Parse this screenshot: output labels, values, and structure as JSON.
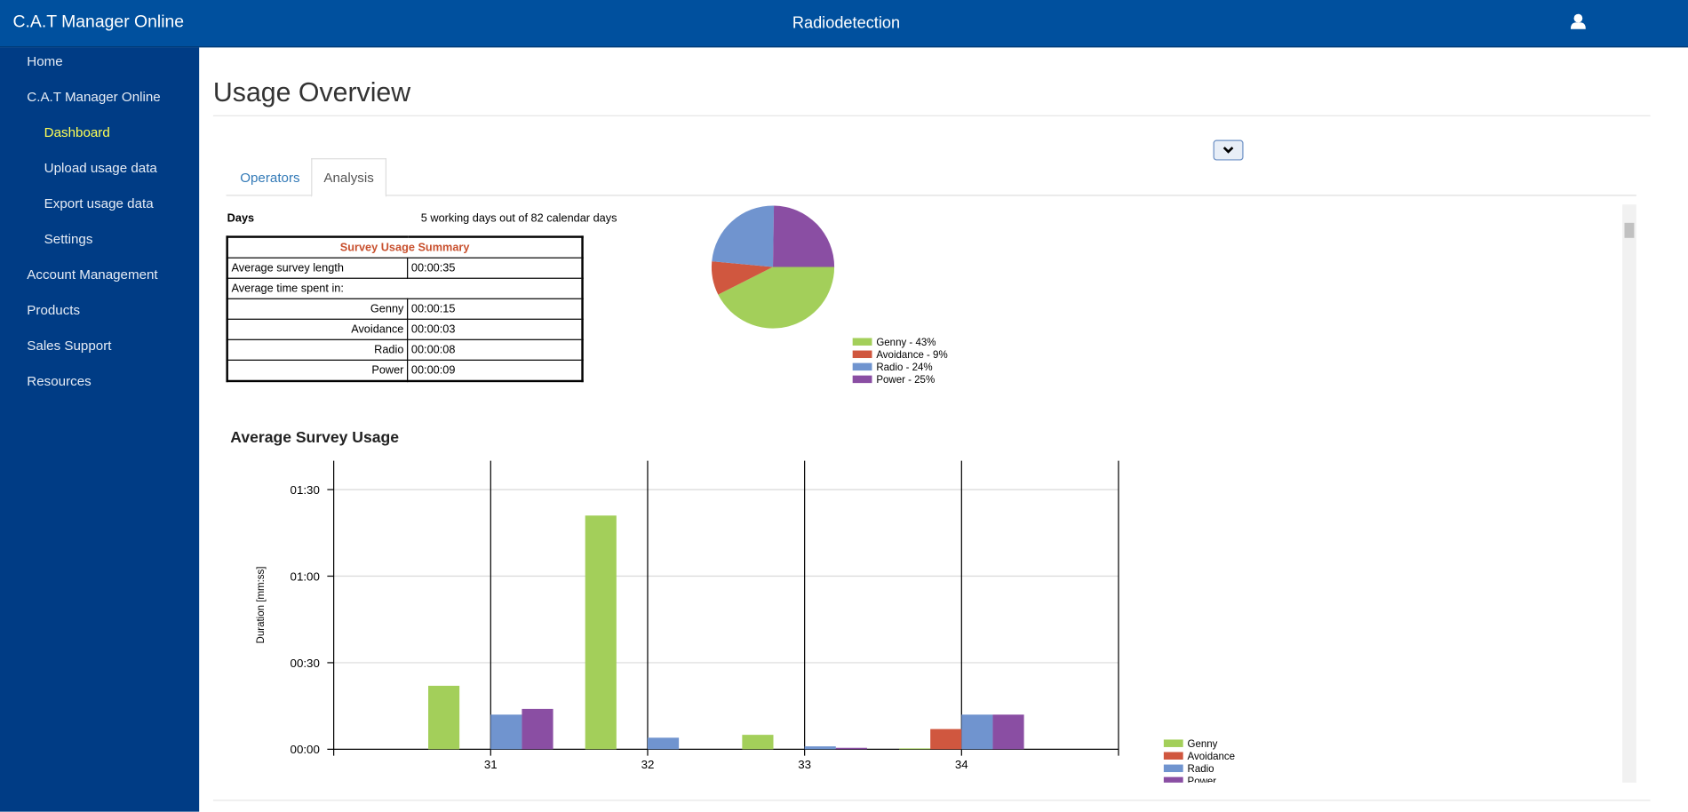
{
  "header": {
    "brand": "C.A.T Manager Online",
    "site": "Radiodetection"
  },
  "nav": [
    "Home",
    "C.A.T Manager Online",
    "Dashboard",
    "Upload usage data",
    "Export usage data",
    "Settings",
    "Account Management",
    "Products",
    "Sales Support",
    "Resources"
  ],
  "page_title": "Usage Overview",
  "tabs": [
    "Operators",
    "Analysis"
  ],
  "days": {
    "label": "Days",
    "value": "5 working days out of 82 calendar days"
  },
  "summary_table": {
    "title": "Survey Usage Summary",
    "rows": [
      [
        "Average survey length",
        "00:00:35"
      ],
      [
        "Average time spent in:"
      ],
      [
        "Genny",
        "00:00:15"
      ],
      [
        "Avoidance",
        "00:00:03"
      ],
      [
        "Radio",
        "00:00:08"
      ],
      [
        "Power",
        "00:00:09"
      ]
    ]
  },
  "chart_data": [
    {
      "type": "pie",
      "categories": [
        "Genny",
        "Avoidance",
        "Radio",
        "Power"
      ],
      "values": [
        43,
        9,
        24,
        25
      ],
      "labels": [
        "Genny - 43%",
        "Avoidance - 9%",
        "Radio - 24%",
        "Power - 25%"
      ],
      "colors": [
        "#a3cf5a",
        "#d0573f",
        "#7094cf",
        "#8a4ea3"
      ]
    },
    {
      "type": "bar",
      "title": "Average Survey Usage",
      "y_label": "Duration [mm:ss]",
      "x": [
        31,
        32,
        33,
        34
      ],
      "xlim": [
        30,
        35
      ],
      "xticks": [
        31,
        32,
        33,
        34
      ],
      "ylim": [
        0,
        100
      ],
      "yticks": [
        {
          "value": 0,
          "label": "00:00"
        },
        {
          "value": 30,
          "label": "00:30"
        },
        {
          "value": 60,
          "label": "01:00"
        },
        {
          "value": 90,
          "label": "01:30"
        }
      ],
      "grid": true,
      "series": [
        {
          "name": "Genny",
          "color": "#a3cf5a",
          "values": [
            22,
            81,
            5,
            0.3
          ]
        },
        {
          "name": "Avoidance",
          "color": "#d0573f",
          "values": [
            0,
            0,
            0,
            7
          ]
        },
        {
          "name": "Radio",
          "color": "#7094cf",
          "values": [
            12,
            4,
            1,
            12
          ]
        },
        {
          "name": "Power",
          "color": "#8a4ea3",
          "values": [
            14,
            0,
            0.5,
            12
          ]
        }
      ]
    }
  ]
}
